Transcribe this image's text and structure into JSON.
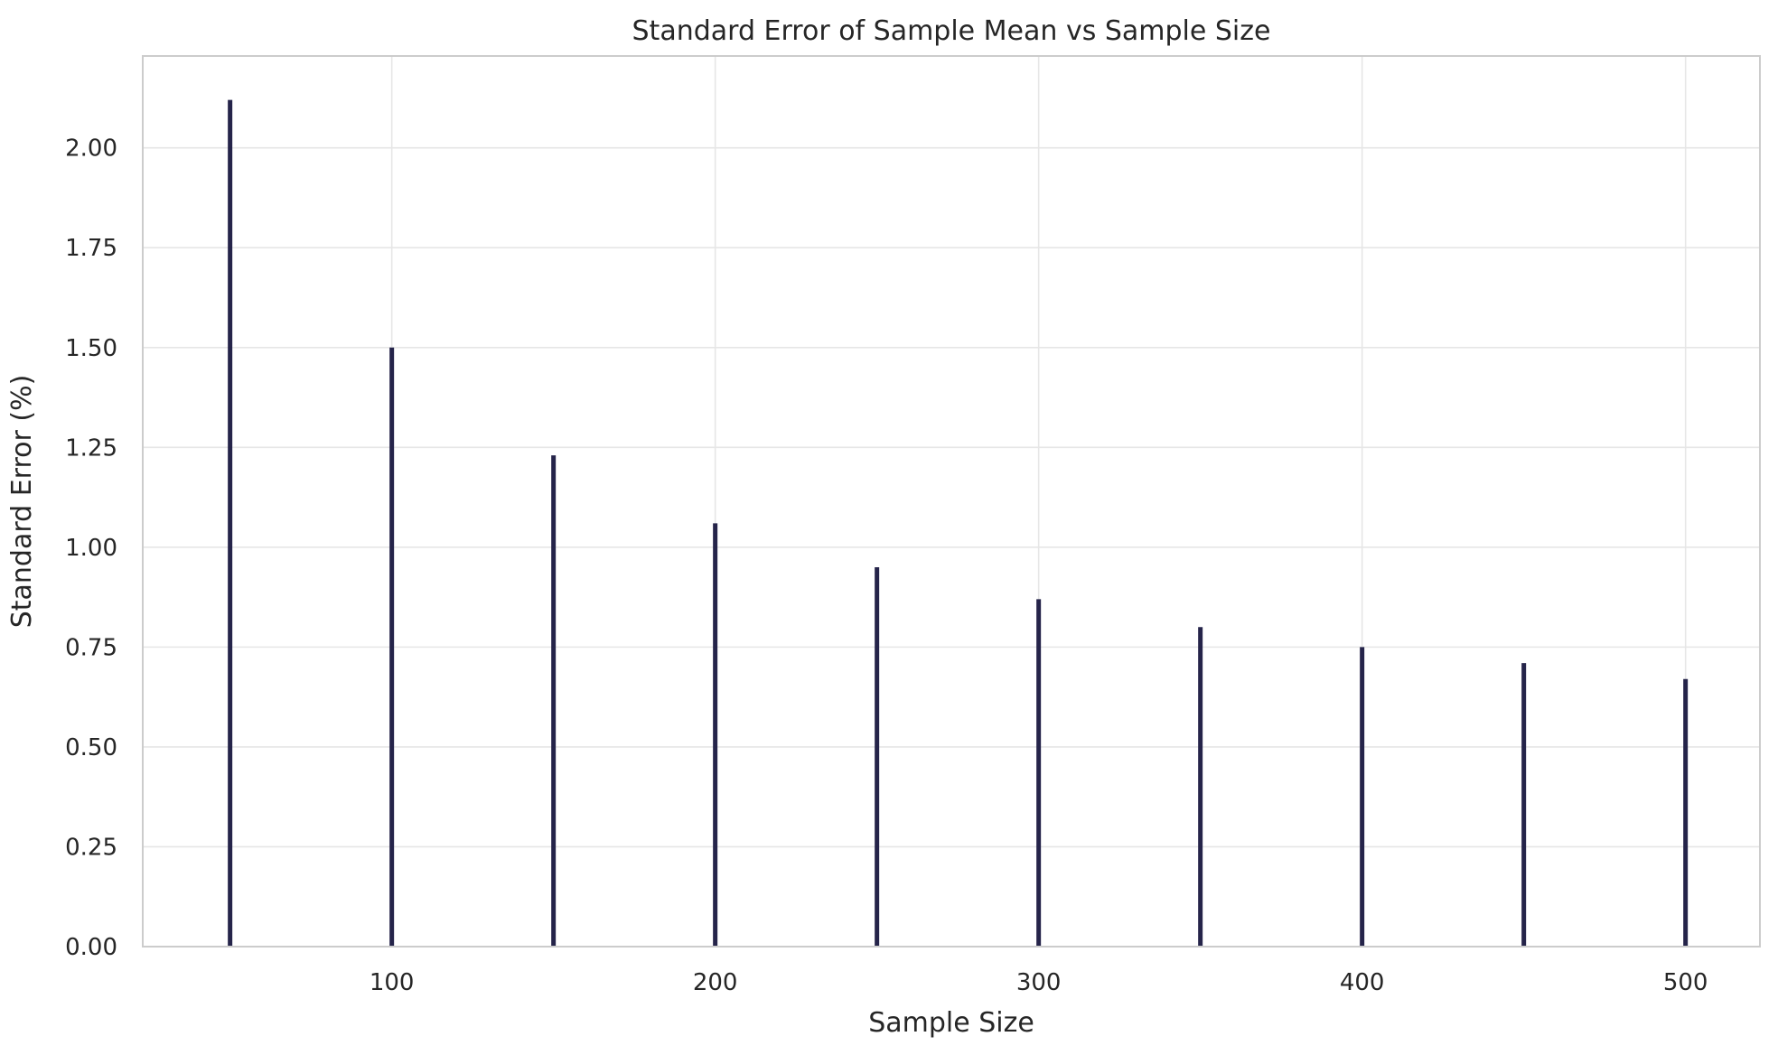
{
  "chart_data": {
    "type": "bar",
    "title": "Standard Error of Sample Mean vs Sample Size",
    "xlabel": "Sample Size",
    "ylabel": "Standard Error (%)",
    "x": [
      50,
      100,
      150,
      200,
      250,
      300,
      350,
      400,
      450,
      500
    ],
    "values": [
      2.12,
      1.5,
      1.23,
      1.06,
      0.95,
      0.87,
      0.8,
      0.75,
      0.71,
      0.67
    ],
    "xlim": [
      23,
      523
    ],
    "ylim": [
      0,
      2.23
    ],
    "xticks": [
      100,
      200,
      300,
      400,
      500
    ],
    "yticks": [
      0.0,
      0.25,
      0.5,
      0.75,
      1.0,
      1.25,
      1.5,
      1.75,
      2.0
    ],
    "ytick_labels": [
      "0.00",
      "0.25",
      "0.50",
      "0.75",
      "1.00",
      "1.25",
      "1.50",
      "1.75",
      "2.00"
    ],
    "grid": true,
    "colors": {
      "bar": "#25244a",
      "grid": "#e6e6e6",
      "frame": "#cccccc",
      "text": "#262626"
    }
  }
}
